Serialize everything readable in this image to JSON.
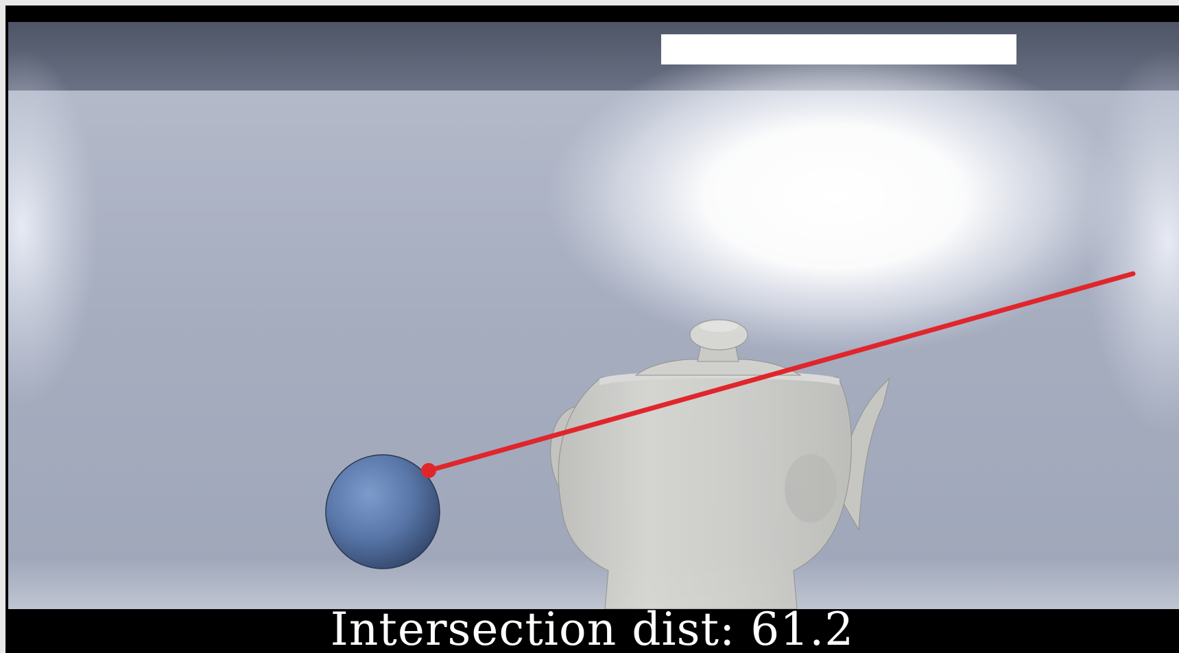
{
  "caption": {
    "label": "Intersection dist:",
    "value": "61.2"
  },
  "scene": {
    "objects": [
      "sphere",
      "teapot",
      "area-light"
    ],
    "ray_color": "#e0262c",
    "sphere_color": "#5a7aae",
    "teapot_color": "#d2d2cd",
    "light_color": "#ffffff",
    "wall_color": "#a9b0c2",
    "ceiling_color": "#5e6477"
  }
}
